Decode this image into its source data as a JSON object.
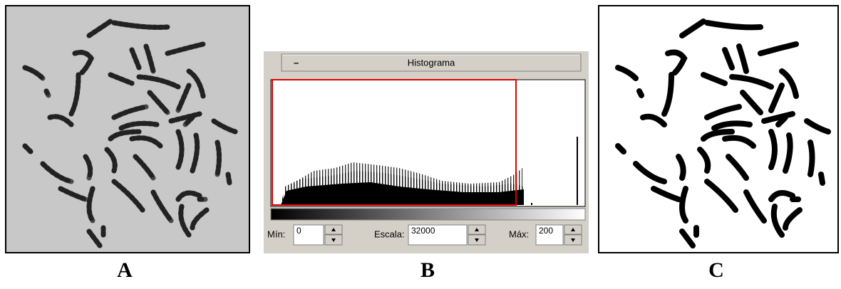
{
  "panels": [
    {
      "label": "A"
    },
    {
      "label": "B"
    },
    {
      "label": "C"
    }
  ],
  "histogram_widget": {
    "collapse_button": "–",
    "title": "Histograma",
    "min_label": "Mín:",
    "min_value": 0,
    "scale_label": "Escala:",
    "scale_value": 32000,
    "max_label": "Máx:",
    "max_value": 200
  }
}
